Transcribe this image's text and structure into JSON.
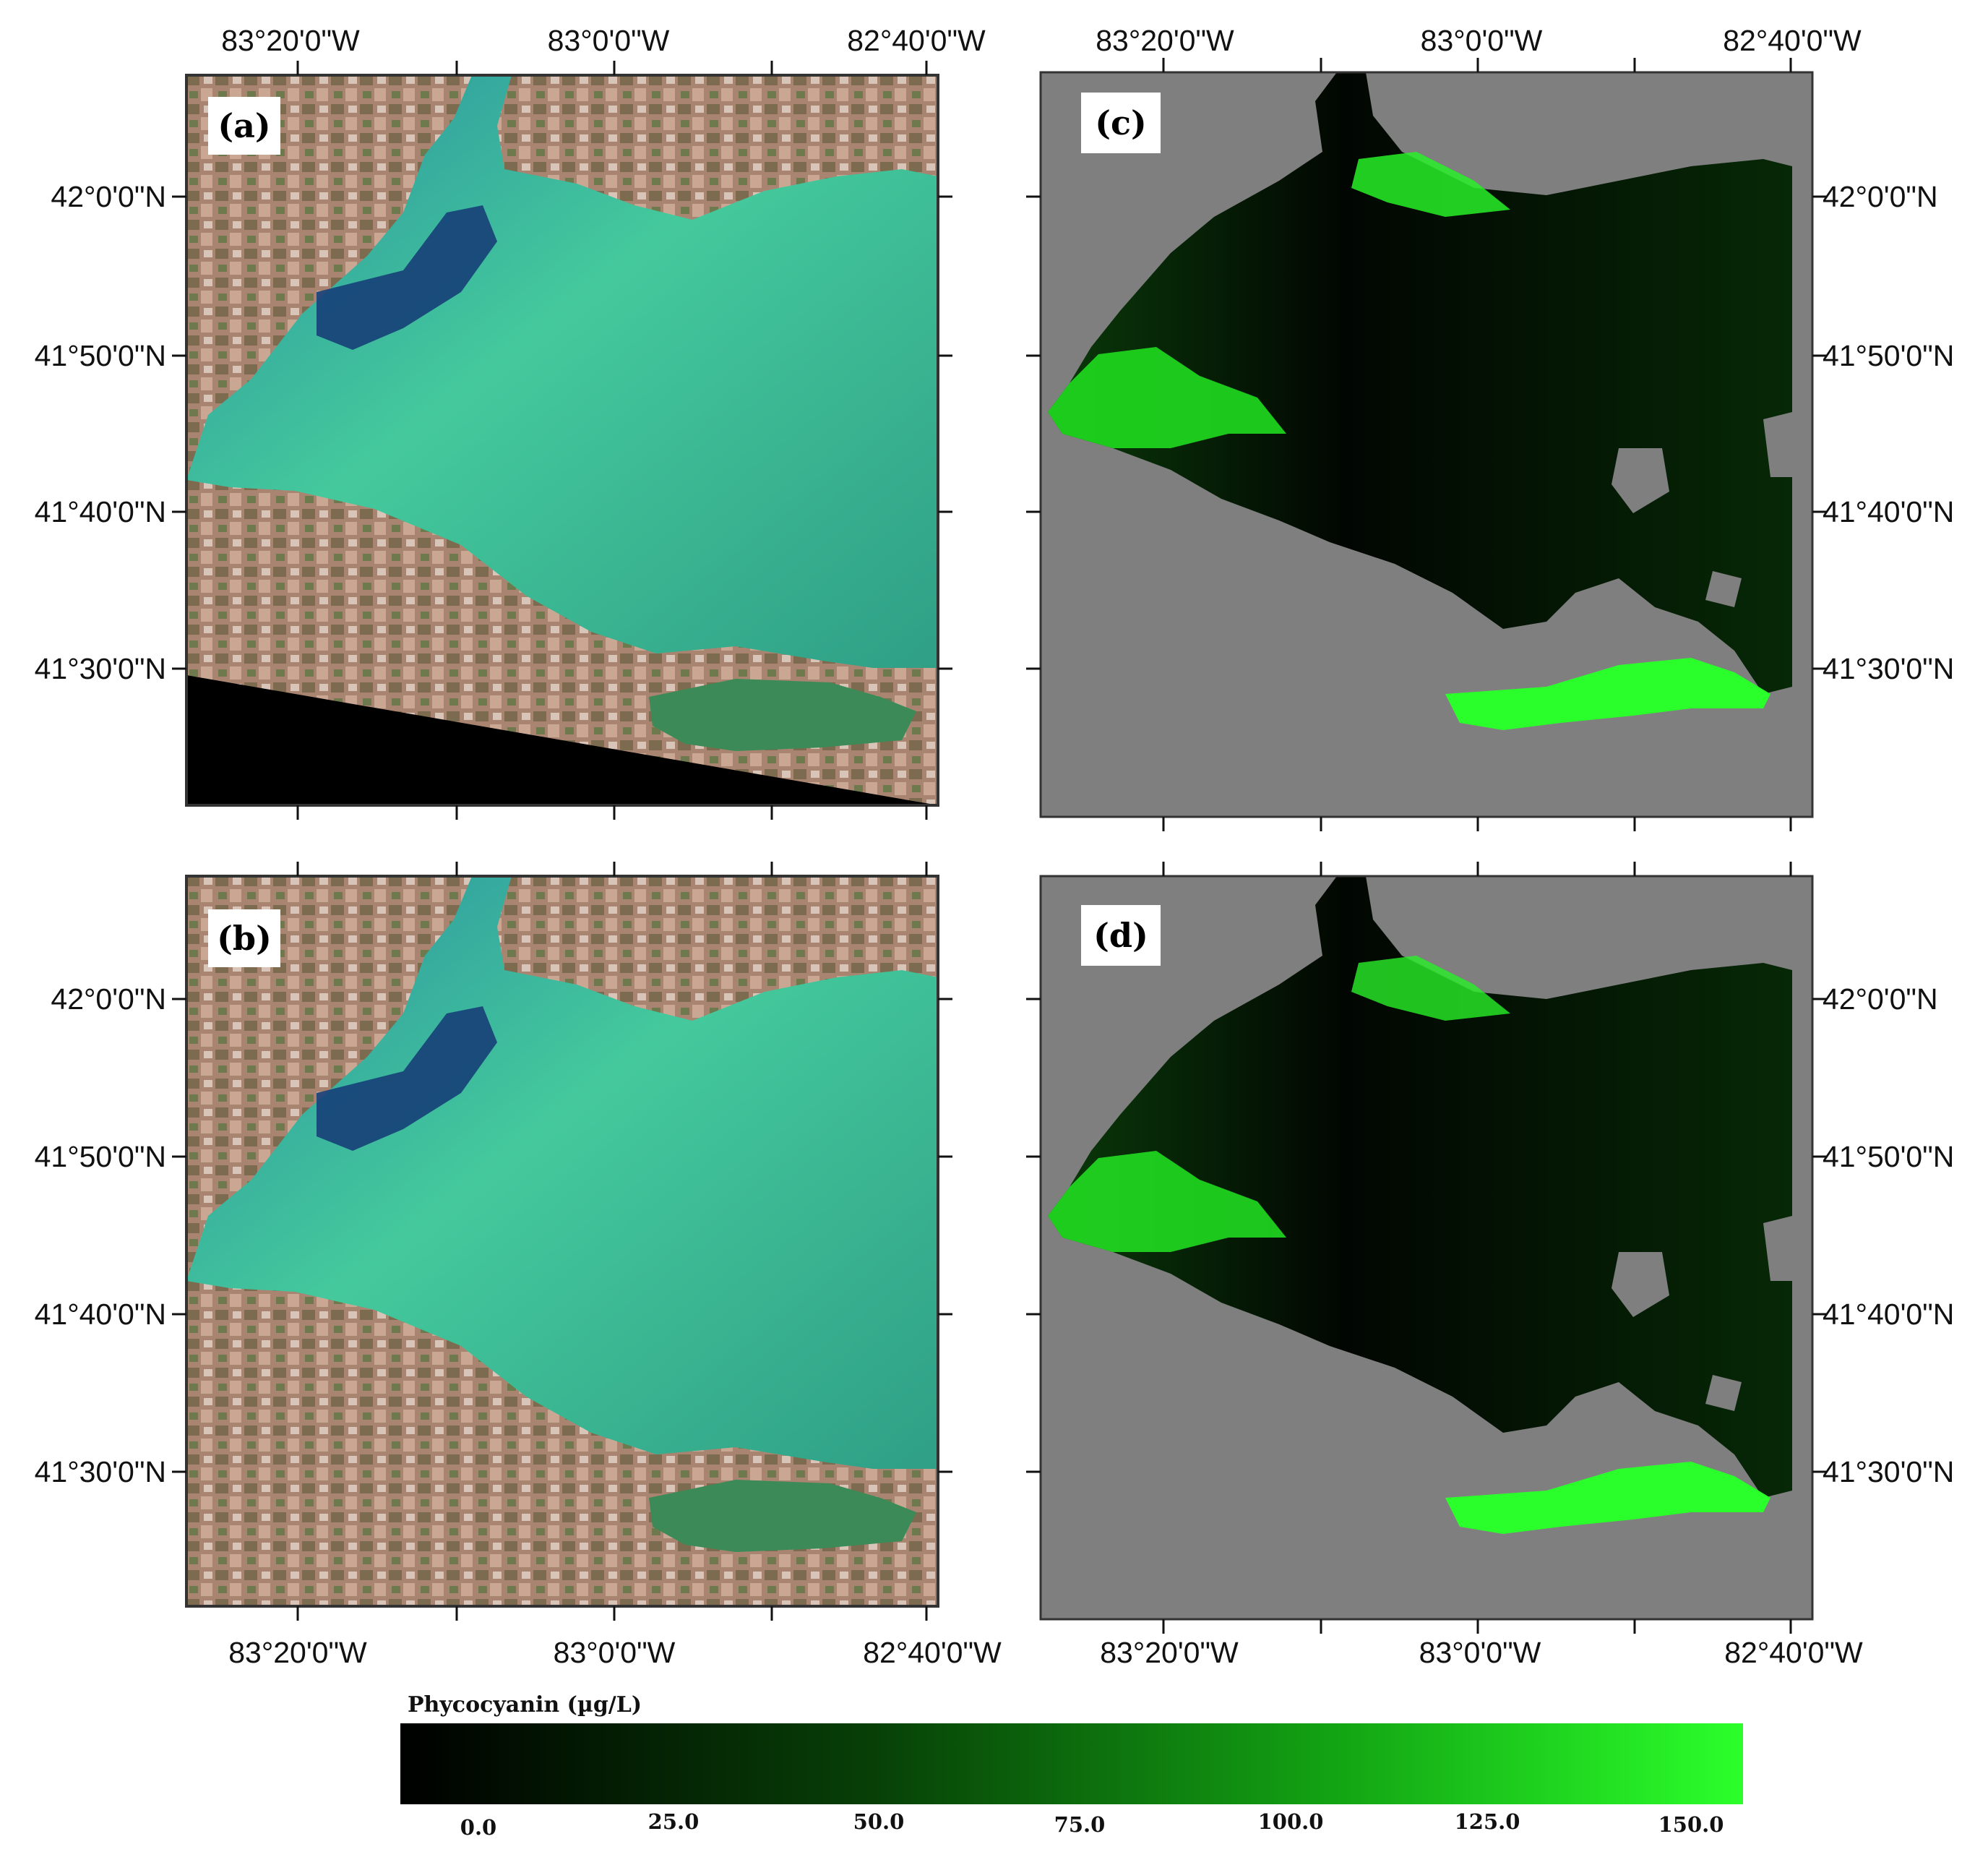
{
  "panels": {
    "a": {
      "label": "(a)",
      "type": "true-color satellite image"
    },
    "b": {
      "label": "(b)",
      "type": "true-color satellite image"
    },
    "c": {
      "label": "(c)",
      "type": "phycocyanin map"
    },
    "d": {
      "label": "(d)",
      "type": "phycocyanin map"
    }
  },
  "axes": {
    "longitude_labels": [
      "83°20'0\"W",
      "83°0'0\"W",
      "82°40'0\"W"
    ],
    "latitude_labels": [
      "42°0'0\"N",
      "41°50'0\"N",
      "41°40'0\"N",
      "41°30'0\"N"
    ]
  },
  "colorbar": {
    "title": "Phycocyanin (µg/L)",
    "ticks": [
      "0.0",
      "25.0",
      "50.0",
      "75.0",
      "100.0",
      "125.0",
      "150.0"
    ],
    "min": 0,
    "max": 150,
    "color_low": "#000000",
    "color_high": "#2bff2b"
  },
  "colors": {
    "no_data_gray": "#7f7f7f",
    "bloom_green": "#2bff2b",
    "lake_dark_blue": "#0f2f63",
    "lake_turquoise": "#3fc79a",
    "land": "#b08470"
  }
}
